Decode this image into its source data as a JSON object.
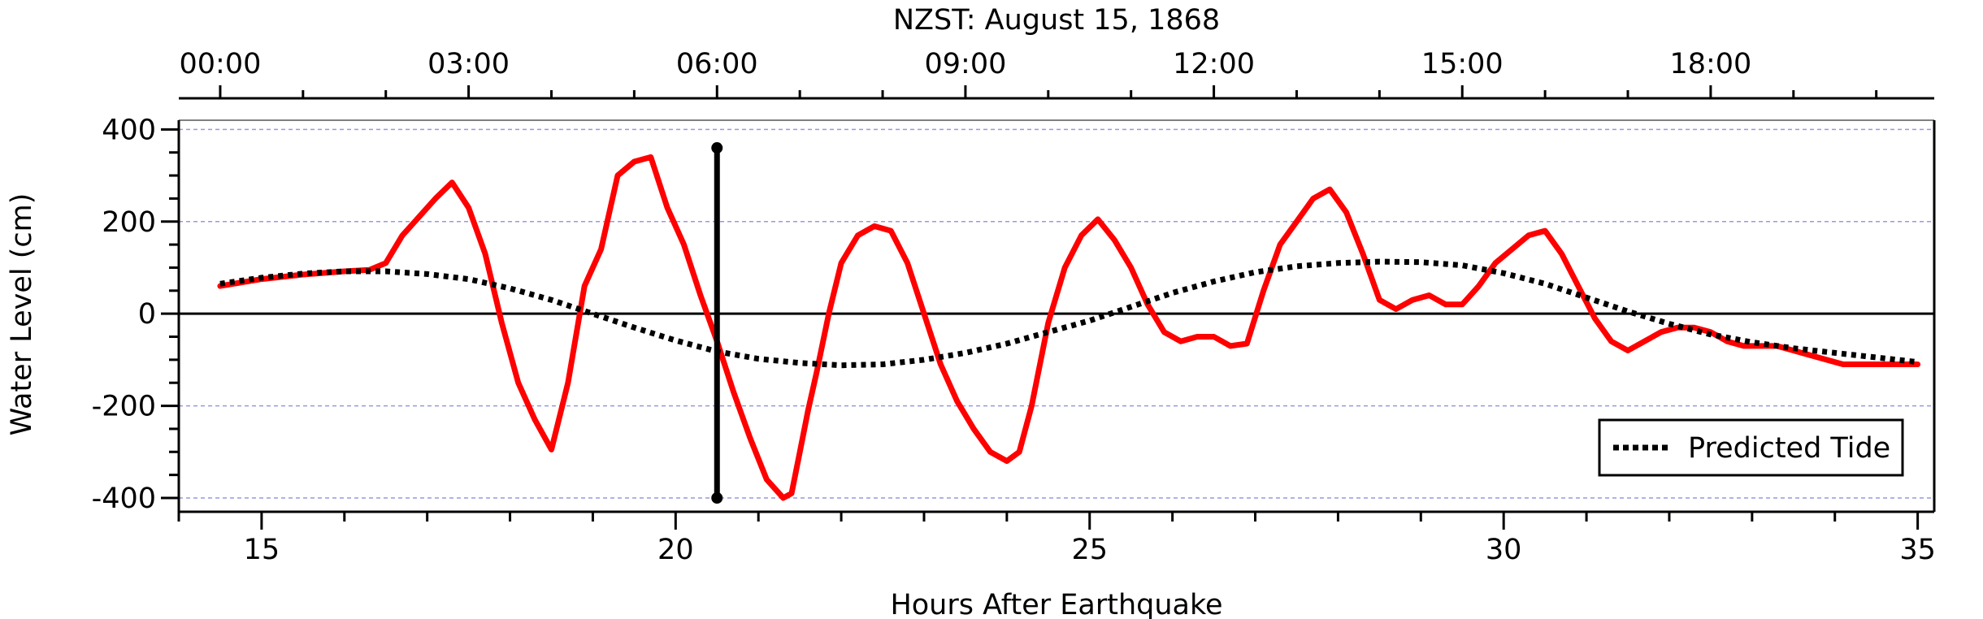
{
  "chart_data": {
    "type": "line",
    "top_axis": {
      "title": "NZST: August 15, 1868",
      "tick_labels": [
        "00:00",
        "03:00",
        "06:00",
        "09:00",
        "12:00",
        "15:00",
        "18:00"
      ],
      "tick_hours": [
        14.5,
        17.5,
        20.5,
        23.5,
        26.5,
        29.5,
        32.5
      ]
    },
    "xlabel": "Hours After Earthquake",
    "ylabel": "Water Level (cm)",
    "xlim": [
      14.0,
      35.2
    ],
    "ylim": [
      -430,
      420
    ],
    "x_ticks": [
      15,
      20,
      25,
      30,
      35
    ],
    "y_ticks": [
      -400,
      -200,
      0,
      200,
      400
    ],
    "grid": true,
    "legend": {
      "position": "bottom-right",
      "entries": [
        "Predicted Tide"
      ]
    },
    "colors": {
      "observed": "#ff0000",
      "tide": "#000000",
      "grid": "#9999dd",
      "marker": "#000000"
    },
    "marker_line": {
      "x": 20.5,
      "y_range": [
        -400,
        360
      ]
    },
    "series": [
      {
        "style": "solid",
        "x": [
          14.5,
          15.0,
          15.5,
          16.0,
          16.3,
          16.5,
          16.7,
          16.9,
          17.1,
          17.3,
          17.5,
          17.7,
          17.9,
          18.1,
          18.3,
          18.5,
          18.7,
          18.9,
          19.1,
          19.3,
          19.5,
          19.7,
          19.9,
          20.1,
          20.3,
          20.5,
          20.7,
          20.9,
          21.1,
          21.3,
          21.4,
          21.5,
          21.6,
          21.7,
          21.85,
          22.0,
          22.2,
          22.4,
          22.6,
          22.8,
          23.0,
          23.2,
          23.4,
          23.6,
          23.8,
          24.0,
          24.15,
          24.3,
          24.5,
          24.7,
          24.9,
          25.1,
          25.3,
          25.5,
          25.7,
          25.9,
          26.1,
          26.3,
          26.5,
          26.7,
          26.9,
          27.1,
          27.3,
          27.5,
          27.7,
          27.9,
          28.1,
          28.3,
          28.5,
          28.7,
          28.9,
          29.1,
          29.3,
          29.5,
          29.7,
          29.9,
          30.1,
          30.3,
          30.5,
          30.7,
          30.9,
          31.1,
          31.3,
          31.5,
          31.7,
          31.9,
          32.1,
          32.3,
          32.5,
          32.7,
          32.9,
          33.1,
          33.3,
          33.5,
          33.7,
          33.9,
          34.1,
          34.3,
          34.5,
          34.7,
          34.9,
          35.0
        ],
        "y": [
          60,
          75,
          85,
          92,
          95,
          110,
          170,
          210,
          250,
          285,
          230,
          130,
          -20,
          -150,
          -230,
          -295,
          -150,
          60,
          140,
          300,
          330,
          340,
          230,
          150,
          40,
          -60,
          -170,
          -270,
          -360,
          -400,
          -390,
          -300,
          -210,
          -130,
          0,
          110,
          170,
          190,
          180,
          110,
          0,
          -110,
          -190,
          -250,
          -300,
          -320,
          -300,
          -200,
          -20,
          100,
          170,
          205,
          160,
          100,
          20,
          -40,
          -60,
          -50,
          -50,
          -70,
          -65,
          50,
          150,
          200,
          250,
          270,
          220,
          130,
          30,
          10,
          30,
          40,
          20,
          20,
          60,
          110,
          140,
          170,
          180,
          130,
          60,
          -10,
          -60,
          -80,
          -60,
          -40,
          -30,
          -30,
          -40,
          -60,
          -70,
          -70,
          -70,
          -80,
          -90,
          -100,
          -110,
          -110,
          -110,
          -110,
          -110,
          -110
        ]
      },
      {
        "name": "Predicted Tide",
        "style": "dotted",
        "x": [
          14.5,
          15.0,
          15.5,
          16.0,
          16.5,
          17.0,
          17.5,
          18.0,
          18.5,
          19.0,
          19.5,
          20.0,
          20.5,
          21.0,
          21.5,
          22.0,
          22.5,
          23.0,
          23.5,
          24.0,
          24.5,
          25.0,
          25.5,
          26.0,
          26.5,
          27.0,
          27.5,
          28.0,
          28.5,
          29.0,
          29.5,
          30.0,
          30.5,
          31.0,
          31.5,
          32.0,
          32.5,
          33.0,
          33.5,
          34.0,
          34.5,
          35.0
        ],
        "y": [
          65,
          78,
          87,
          92,
          92,
          86,
          75,
          55,
          30,
          0,
          -30,
          -58,
          -82,
          -98,
          -107,
          -112,
          -110,
          -100,
          -85,
          -65,
          -40,
          -15,
          15,
          45,
          70,
          90,
          103,
          110,
          113,
          112,
          105,
          88,
          65,
          35,
          5,
          -22,
          -45,
          -62,
          -75,
          -85,
          -95,
          -105
        ]
      }
    ]
  }
}
